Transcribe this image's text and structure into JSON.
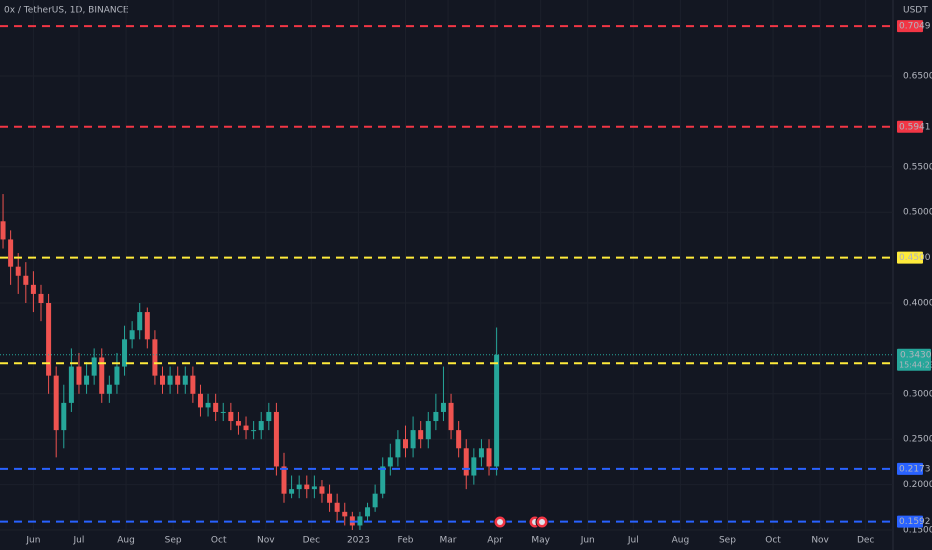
{
  "chart_data": {
    "type": "candlestick",
    "title": "0x / TetherUS, 1D, BINANCE",
    "currency": "USDT",
    "x": [
      -20,
      -15,
      -10,
      -5,
      0,
      5,
      10,
      15,
      20,
      25,
      30,
      35,
      40,
      45,
      50,
      55,
      60,
      65,
      70,
      75,
      80,
      85,
      90,
      95,
      100,
      105,
      110,
      115,
      120,
      125,
      130,
      135,
      140,
      145,
      150,
      155,
      160,
      165,
      170,
      175,
      180,
      185,
      190,
      195,
      200,
      205,
      210,
      215,
      220,
      225,
      230,
      235,
      240,
      245,
      250,
      255,
      260,
      265,
      270,
      275,
      280,
      285,
      290,
      295,
      300,
      305
    ],
    "open": [
      0.49,
      0.47,
      0.44,
      0.43,
      0.42,
      0.41,
      0.4,
      0.32,
      0.26,
      0.29,
      0.33,
      0.31,
      0.32,
      0.34,
      0.3,
      0.31,
      0.33,
      0.36,
      0.37,
      0.39,
      0.36,
      0.32,
      0.31,
      0.32,
      0.31,
      0.32,
      0.3,
      0.285,
      0.29,
      0.28,
      0.28,
      0.27,
      0.265,
      0.26,
      0.26,
      0.27,
      0.28,
      0.22,
      0.19,
      0.195,
      0.2,
      0.195,
      0.198,
      0.19,
      0.18,
      0.17,
      0.165,
      0.155,
      0.165,
      0.175,
      0.19,
      0.22,
      0.23,
      0.25,
      0.24,
      0.26,
      0.25,
      0.27,
      0.28,
      0.29,
      0.26,
      0.24,
      0.21,
      0.23,
      0.24,
      0.22
    ],
    "high": [
      0.52,
      0.48,
      0.455,
      0.445,
      0.435,
      0.42,
      0.41,
      0.33,
      0.31,
      0.35,
      0.345,
      0.335,
      0.35,
      0.35,
      0.32,
      0.345,
      0.375,
      0.38,
      0.4,
      0.395,
      0.37,
      0.33,
      0.33,
      0.33,
      0.33,
      0.33,
      0.31,
      0.3,
      0.3,
      0.29,
      0.29,
      0.28,
      0.275,
      0.27,
      0.28,
      0.29,
      0.29,
      0.235,
      0.21,
      0.21,
      0.21,
      0.21,
      0.205,
      0.2,
      0.19,
      0.18,
      0.17,
      0.17,
      0.18,
      0.2,
      0.23,
      0.245,
      0.26,
      0.265,
      0.275,
      0.27,
      0.28,
      0.3,
      0.33,
      0.3,
      0.27,
      0.25,
      0.24,
      0.25,
      0.25,
      0.373
    ],
    "low": [
      0.46,
      0.42,
      0.41,
      0.4,
      0.39,
      0.38,
      0.3,
      0.23,
      0.24,
      0.28,
      0.3,
      0.3,
      0.31,
      0.29,
      0.29,
      0.3,
      0.32,
      0.35,
      0.36,
      0.35,
      0.31,
      0.3,
      0.3,
      0.3,
      0.3,
      0.29,
      0.275,
      0.275,
      0.27,
      0.27,
      0.26,
      0.255,
      0.25,
      0.25,
      0.25,
      0.26,
      0.21,
      0.18,
      0.185,
      0.185,
      0.185,
      0.185,
      0.18,
      0.17,
      0.16,
      0.155,
      0.15,
      0.15,
      0.16,
      0.17,
      0.185,
      0.21,
      0.22,
      0.23,
      0.23,
      0.24,
      0.24,
      0.26,
      0.27,
      0.25,
      0.23,
      0.195,
      0.2,
      0.22,
      0.21,
      0.21
    ],
    "close": [
      0.47,
      0.44,
      0.43,
      0.42,
      0.41,
      0.4,
      0.32,
      0.26,
      0.29,
      0.33,
      0.31,
      0.32,
      0.34,
      0.3,
      0.31,
      0.33,
      0.36,
      0.37,
      0.39,
      0.36,
      0.32,
      0.31,
      0.32,
      0.31,
      0.32,
      0.3,
      0.285,
      0.29,
      0.28,
      0.28,
      0.27,
      0.265,
      0.26,
      0.26,
      0.27,
      0.28,
      0.22,
      0.19,
      0.195,
      0.2,
      0.195,
      0.198,
      0.19,
      0.18,
      0.17,
      0.165,
      0.155,
      0.165,
      0.175,
      0.19,
      0.22,
      0.23,
      0.25,
      0.24,
      0.26,
      0.25,
      0.27,
      0.28,
      0.29,
      0.26,
      0.24,
      0.21,
      0.23,
      0.24,
      0.22,
      0.343
    ],
    "up_color": "#26a69a",
    "down_color": "#ef5350",
    "xlim": [
      -22,
      566
    ],
    "xticks": [
      {
        "value": 0,
        "label": "Jun"
      },
      {
        "value": 30,
        "label": "Jul"
      },
      {
        "value": 61,
        "label": "Aug"
      },
      {
        "value": 92,
        "label": "Sep"
      },
      {
        "value": 122,
        "label": "Oct"
      },
      {
        "value": 153,
        "label": "Nov"
      },
      {
        "value": 183,
        "label": "Dec"
      },
      {
        "value": 214,
        "label": "2023"
      },
      {
        "value": 245,
        "label": "Feb"
      },
      {
        "value": 273,
        "label": "Mar"
      },
      {
        "value": 304,
        "label": "Apr"
      },
      {
        "value": 334,
        "label": "May"
      },
      {
        "value": 365,
        "label": "Jun"
      },
      {
        "value": 395,
        "label": "Jul"
      },
      {
        "value": 426,
        "label": "Aug"
      },
      {
        "value": 457,
        "label": "Sep"
      },
      {
        "value": 487,
        "label": "Oct"
      },
      {
        "value": 518,
        "label": "Nov"
      },
      {
        "value": 548,
        "label": "Dec"
      }
    ],
    "ylim": [
      0.15,
      0.7337
    ],
    "yticks": [
      {
        "value": 0.15,
        "label": "0.1500"
      },
      {
        "value": 0.2,
        "label": "0.2000"
      },
      {
        "value": 0.25,
        "label": "0.2500"
      },
      {
        "value": 0.3,
        "label": "0.3000"
      },
      {
        "value": 0.4,
        "label": "0.4000"
      },
      {
        "value": 0.5,
        "label": "0.5000"
      },
      {
        "value": 0.55,
        "label": "0.5500"
      },
      {
        "value": 0.65,
        "label": "0.6500"
      }
    ],
    "grid": true,
    "levels": [
      {
        "value": 0.7049,
        "label": "0.7049",
        "color": "#f23645"
      },
      {
        "value": 0.5941,
        "label": "0.5941",
        "color": "#f23645"
      },
      {
        "value": 0.45,
        "label": "0.4500",
        "color": "#ffeb3b"
      },
      {
        "value": 0.3337,
        "label": "0.3337",
        "color": "#ffeb3b"
      },
      {
        "value": 0.2173,
        "label": "0.2173",
        "color": "#2962ff"
      },
      {
        "value": 0.1592,
        "label": "0.1592",
        "color": "#2962ff"
      }
    ],
    "last": {
      "value": 0.343,
      "label": "0.3430",
      "countdown": "15:44:23",
      "color": "#26a69a"
    }
  }
}
